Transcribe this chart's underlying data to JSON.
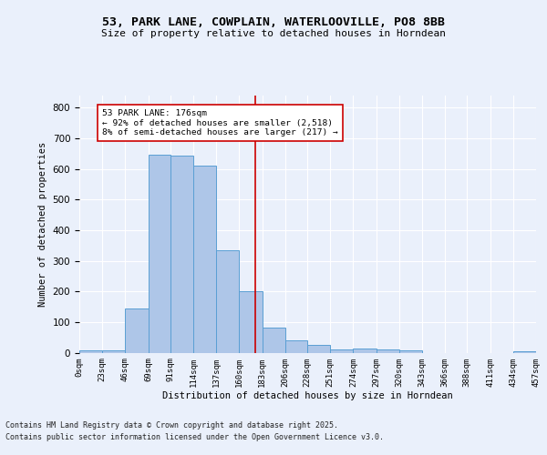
{
  "title": "53, PARK LANE, COWPLAIN, WATERLOOVILLE, PO8 8BB",
  "subtitle": "Size of property relative to detached houses in Horndean",
  "xlabel": "Distribution of detached houses by size in Horndean",
  "ylabel": "Number of detached properties",
  "footnote1": "Contains HM Land Registry data © Crown copyright and database right 2025.",
  "footnote2": "Contains public sector information licensed under the Open Government Licence v3.0.",
  "annotation_title": "53 PARK LANE: 176sqm",
  "annotation_line1": "← 92% of detached houses are smaller (2,518)",
  "annotation_line2": "8% of semi-detached houses are larger (217) →",
  "property_size": 176,
  "bar_edges": [
    0,
    23,
    46,
    69,
    91,
    114,
    137,
    160,
    183,
    206,
    228,
    251,
    274,
    297,
    320,
    343,
    366,
    388,
    411,
    434,
    457
  ],
  "bar_heights": [
    7,
    8,
    145,
    648,
    644,
    611,
    335,
    200,
    83,
    40,
    25,
    10,
    12,
    10,
    8,
    0,
    0,
    0,
    0,
    5
  ],
  "bar_color": "#aec6e8",
  "bar_edgecolor": "#5a9fd4",
  "vline_color": "#cc0000",
  "vline_x": 176,
  "annotation_box_edgecolor": "#cc0000",
  "annotation_box_facecolor": "#ffffff",
  "bg_color": "#eaf0fb",
  "plot_bg_color": "#eaf0fb",
  "grid_color": "#ffffff",
  "ylim": [
    0,
    840
  ],
  "yticks": [
    0,
    100,
    200,
    300,
    400,
    500,
    600,
    700,
    800
  ],
  "tick_labels": [
    "0sqm",
    "23sqm",
    "46sqm",
    "69sqm",
    "91sqm",
    "114sqm",
    "137sqm",
    "160sqm",
    "183sqm",
    "206sqm",
    "228sqm",
    "251sqm",
    "274sqm",
    "297sqm",
    "320sqm",
    "343sqm",
    "366sqm",
    "388sqm",
    "411sqm",
    "434sqm",
    "457sqm"
  ]
}
